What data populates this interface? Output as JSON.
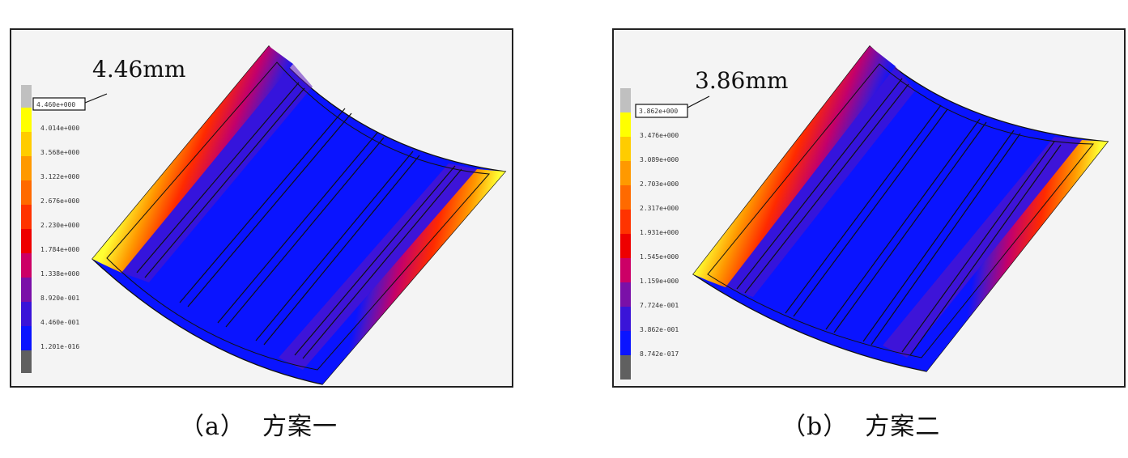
{
  "panels": [
    {
      "id": "a",
      "max_label": "4.46mm",
      "caption": "（a）  方案一",
      "colorbar": {
        "top_value": "4.460e+000",
        "labels": [
          "4.014e+000",
          "3.568e+000",
          "3.122e+000",
          "2.676e+000",
          "2.230e+000",
          "1.784e+000",
          "1.338e+000",
          "8.920e-001",
          "4.460e-001",
          "1.201e-016"
        ]
      }
    },
    {
      "id": "b",
      "max_label": "3.86mm",
      "caption": "（b）  方案二",
      "colorbar": {
        "top_value": "3.862e+000",
        "labels": [
          "3.476e+000",
          "3.089e+000",
          "2.703e+000",
          "2.317e+000",
          "1.931e+000",
          "1.545e+000",
          "1.159e+000",
          "7.724e-001",
          "3.862e-001",
          "8.742e-017"
        ]
      }
    }
  ],
  "colors": {
    "colorbar": [
      "#c0c0c0",
      "#ffff00",
      "#ffcc00",
      "#ff9900",
      "#ff6a00",
      "#ff3300",
      "#ee0000",
      "#cc0066",
      "#7a10a8",
      "#3a14d8",
      "#0a14ff",
      "#606060"
    ],
    "plate_base": "#0a14ff",
    "background": "#f4f4f4"
  }
}
